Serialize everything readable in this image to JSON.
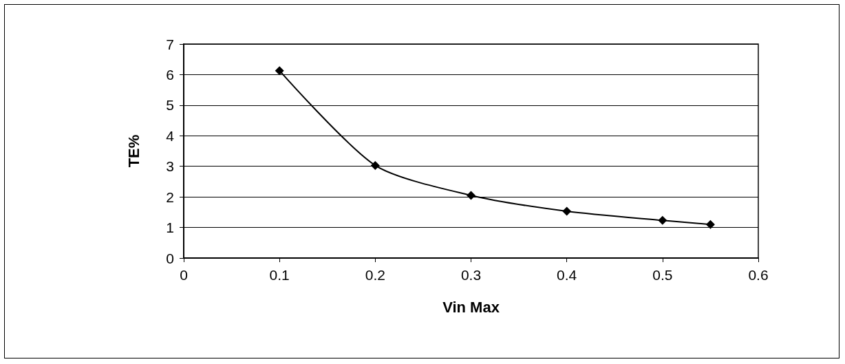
{
  "chart_data": {
    "type": "line",
    "xlabel": "Vin Max",
    "ylabel": "TE%",
    "x": [
      0.1,
      0.2,
      0.3,
      0.4,
      0.5,
      0.55
    ],
    "series": [
      {
        "color": "#000000",
        "values": [
          6.13,
          3.03,
          2.05,
          1.53,
          1.23,
          1.1
        ]
      }
    ],
    "xlim": [
      0,
      0.6
    ],
    "xticks": [
      0,
      0.1,
      0.2,
      0.3,
      0.4,
      0.5,
      0.6
    ],
    "ylim": [
      0,
      7
    ],
    "yticks": [
      0,
      1,
      2,
      3,
      4,
      5,
      6,
      7
    ],
    "grid": "y",
    "marker": "diamond",
    "line_style": "solid"
  }
}
